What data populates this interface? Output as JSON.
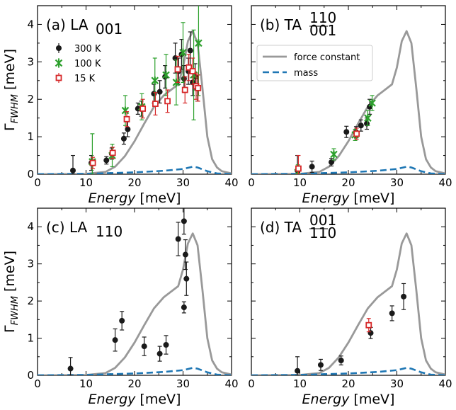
{
  "chart_data": {
    "type": "scatter",
    "x_label_word": "Energy",
    "x_label_unit": "[meV]",
    "y_label_symbol": "Γ",
    "y_label_sub": "FWHM",
    "y_label_unit": "[meV]",
    "xlim": [
      0,
      40
    ],
    "ylim": [
      0,
      4.5
    ],
    "x_ticks": [
      0,
      10,
      20,
      30,
      40
    ],
    "y_ticks": [
      0,
      1,
      2,
      3,
      4
    ],
    "colors": {
      "300K": "#1a1a1a",
      "100K": "#2ca02c",
      "15K": "#d62728",
      "force_constant": "#999999",
      "mass": "#1f77b4"
    },
    "legend_points": [
      {
        "key": "300K",
        "label": "300 K"
      },
      {
        "key": "100K",
        "label": "100 K"
      },
      {
        "key": "15K",
        "label": "15 K"
      }
    ],
    "legend_lines": [
      {
        "key": "force_constant",
        "label": "force constant"
      },
      {
        "key": "mass",
        "label": "mass"
      }
    ],
    "panels": [
      {
        "id": "a",
        "prefix": "(a)",
        "mode": "LA",
        "sub": "001",
        "sup": "",
        "force_constant": [
          [
            0,
            0
          ],
          [
            10,
            0.01
          ],
          [
            14,
            0.06
          ],
          [
            16,
            0.2
          ],
          [
            18,
            0.48
          ],
          [
            20,
            0.88
          ],
          [
            22,
            1.35
          ],
          [
            24,
            1.8
          ],
          [
            26,
            2.1
          ],
          [
            28,
            2.3
          ],
          [
            29,
            2.4
          ],
          [
            30,
            2.85
          ],
          [
            31,
            3.55
          ],
          [
            32,
            3.82
          ],
          [
            33,
            3.5
          ],
          [
            34,
            2.3
          ],
          [
            35,
            1.0
          ],
          [
            36,
            0.4
          ],
          [
            37,
            0.18
          ],
          [
            38,
            0.08
          ],
          [
            40,
            0.02
          ]
        ],
        "mass": [
          [
            0,
            0
          ],
          [
            10,
            0.01
          ],
          [
            20,
            0.05
          ],
          [
            26,
            0.09
          ],
          [
            30,
            0.14
          ],
          [
            32,
            0.2
          ],
          [
            33,
            0.18
          ],
          [
            35,
            0.08
          ],
          [
            37,
            0.02
          ],
          [
            40,
            0
          ]
        ],
        "series": [
          {
            "key": "300K",
            "points": [
              {
                "x": 7.3,
                "y": 0.1,
                "err": 0.4
              },
              {
                "x": 11.1,
                "y": 0.3,
                "err": 0.2
              },
              {
                "x": 14.2,
                "y": 0.37,
                "err": 0.1
              },
              {
                "x": 15.3,
                "y": 0.55,
                "err": 0.15
              },
              {
                "x": 17.8,
                "y": 0.95,
                "err": 0.15
              },
              {
                "x": 18.6,
                "y": 1.2,
                "err": 0.2
              },
              {
                "x": 20.7,
                "y": 1.75,
                "err": 0.15
              },
              {
                "x": 21.4,
                "y": 1.75,
                "err": 0.2
              },
              {
                "x": 24.0,
                "y": 2.15,
                "err": 0.25
              },
              {
                "x": 25.2,
                "y": 2.2,
                "err": 0.3
              },
              {
                "x": 26.3,
                "y": 2.6,
                "err": 0.3
              },
              {
                "x": 28.4,
                "y": 3.1,
                "err": 0.4
              },
              {
                "x": 29.1,
                "y": 2.75,
                "err": 0.35
              },
              {
                "x": 29.7,
                "y": 3.2,
                "err": 0.4
              },
              {
                "x": 30.2,
                "y": 2.55,
                "err": 0.35
              },
              {
                "x": 31.1,
                "y": 2.75,
                "err": 0.35
              },
              {
                "x": 31.5,
                "y": 3.3,
                "err": 0.5
              },
              {
                "x": 32.0,
                "y": 2.45,
                "err": 0.35
              },
              {
                "x": 32.5,
                "y": 2.6,
                "err": 0.35
              },
              {
                "x": 33.0,
                "y": 2.3,
                "err": 0.35
              }
            ]
          },
          {
            "key": "100K",
            "points": [
              {
                "x": 11.3,
                "y": 0.33,
                "err": 0.75
              },
              {
                "x": 15.4,
                "y": 0.5,
                "err": 0.3
              },
              {
                "x": 18.1,
                "y": 1.7,
                "err": 0.4
              },
              {
                "x": 21.5,
                "y": 1.8,
                "err": 0.35
              },
              {
                "x": 24.2,
                "y": 2.5,
                "err": 0.6
              },
              {
                "x": 26.5,
                "y": 2.65,
                "err": 0.55
              },
              {
                "x": 28.6,
                "y": 2.45,
                "err": 0.6
              },
              {
                "x": 30.0,
                "y": 3.25,
                "err": 0.8
              },
              {
                "x": 32.2,
                "y": 2.65,
                "err": 1.2
              },
              {
                "x": 33.2,
                "y": 3.5,
                "err": 1.4
              }
            ]
          },
          {
            "key": "15K",
            "points": [
              {
                "x": 11.4,
                "y": 0.3,
                "err": 0.15
              },
              {
                "x": 15.5,
                "y": 0.57,
                "err": 0.15
              },
              {
                "x": 18.4,
                "y": 1.47,
                "err": 0.2
              },
              {
                "x": 21.7,
                "y": 1.75,
                "err": 0.25
              },
              {
                "x": 24.3,
                "y": 1.88,
                "err": 0.3
              },
              {
                "x": 26.8,
                "y": 1.95,
                "err": 0.3
              },
              {
                "x": 28.9,
                "y": 2.8,
                "err": 0.35
              },
              {
                "x": 30.4,
                "y": 2.25,
                "err": 0.35
              },
              {
                "x": 31.2,
                "y": 2.85,
                "err": 0.35
              },
              {
                "x": 32.0,
                "y": 2.75,
                "err": 0.35
              },
              {
                "x": 32.7,
                "y": 2.35,
                "err": 0.35
              },
              {
                "x": 33.1,
                "y": 2.3,
                "err": 0.35
              }
            ]
          }
        ]
      },
      {
        "id": "b",
        "prefix": "(b)",
        "mode": "TA",
        "sub": "001",
        "sup": "110",
        "force_constant": [
          [
            0,
            0
          ],
          [
            10,
            0.01
          ],
          [
            14,
            0.06
          ],
          [
            16,
            0.2
          ],
          [
            18,
            0.48
          ],
          [
            20,
            0.88
          ],
          [
            22,
            1.35
          ],
          [
            24,
            1.8
          ],
          [
            26,
            2.1
          ],
          [
            28,
            2.3
          ],
          [
            29,
            2.4
          ],
          [
            30,
            2.85
          ],
          [
            31,
            3.55
          ],
          [
            32,
            3.82
          ],
          [
            33,
            3.5
          ],
          [
            34,
            2.3
          ],
          [
            35,
            1.0
          ],
          [
            36,
            0.4
          ],
          [
            37,
            0.18
          ],
          [
            38,
            0.08
          ],
          [
            40,
            0.02
          ]
        ],
        "mass": [
          [
            0,
            0
          ],
          [
            10,
            0.01
          ],
          [
            20,
            0.05
          ],
          [
            26,
            0.09
          ],
          [
            30,
            0.14
          ],
          [
            32,
            0.2
          ],
          [
            33,
            0.18
          ],
          [
            35,
            0.08
          ],
          [
            37,
            0.02
          ],
          [
            40,
            0
          ]
        ],
        "series": [
          {
            "key": "300K",
            "points": [
              {
                "x": 9.5,
                "y": 0.1,
                "err": 0.4
              },
              {
                "x": 12.5,
                "y": 0.2,
                "err": 0.15
              },
              {
                "x": 16.5,
                "y": 0.32,
                "err": 0.1
              },
              {
                "x": 19.6,
                "y": 1.13,
                "err": 0.15
              },
              {
                "x": 21.6,
                "y": 1.12,
                "err": 0.15
              },
              {
                "x": 22.6,
                "y": 1.3,
                "err": 0.15
              },
              {
                "x": 23.8,
                "y": 1.35,
                "err": 0.15
              },
              {
                "x": 24.4,
                "y": 1.8,
                "err": 0.2
              }
            ]
          },
          {
            "key": "100K",
            "points": [
              {
                "x": 9.6,
                "y": 0.05,
                "err": 0.2
              },
              {
                "x": 17.0,
                "y": 0.53,
                "err": 0.15
              },
              {
                "x": 21.4,
                "y": 1.05,
                "err": 0.15
              },
              {
                "x": 24.0,
                "y": 1.5,
                "err": 0.2
              },
              {
                "x": 24.9,
                "y": 1.9,
                "err": 0.2
              }
            ]
          },
          {
            "key": "15K",
            "points": [
              {
                "x": 9.7,
                "y": 0.15,
                "err": 0.35
              },
              {
                "x": 21.7,
                "y": 1.08,
                "err": 0.15
              }
            ]
          }
        ]
      },
      {
        "id": "c",
        "prefix": "(c)",
        "mode": "LA",
        "sub": "110",
        "sup": "",
        "force_constant": [
          [
            0,
            0
          ],
          [
            10,
            0.01
          ],
          [
            14,
            0.06
          ],
          [
            16,
            0.2
          ],
          [
            18,
            0.48
          ],
          [
            20,
            0.88
          ],
          [
            22,
            1.35
          ],
          [
            24,
            1.8
          ],
          [
            26,
            2.1
          ],
          [
            28,
            2.3
          ],
          [
            29,
            2.4
          ],
          [
            30,
            2.85
          ],
          [
            31,
            3.55
          ],
          [
            32,
            3.82
          ],
          [
            33,
            3.5
          ],
          [
            34,
            2.3
          ],
          [
            35,
            1.0
          ],
          [
            36,
            0.4
          ],
          [
            37,
            0.18
          ],
          [
            38,
            0.08
          ],
          [
            40,
            0.02
          ]
        ],
        "mass": [
          [
            0,
            0
          ],
          [
            10,
            0.01
          ],
          [
            20,
            0.05
          ],
          [
            26,
            0.09
          ],
          [
            30,
            0.14
          ],
          [
            32,
            0.2
          ],
          [
            33,
            0.18
          ],
          [
            35,
            0.08
          ],
          [
            37,
            0.02
          ],
          [
            40,
            0
          ]
        ],
        "series": [
          {
            "key": "300K",
            "points": [
              {
                "x": 6.8,
                "y": 0.18,
                "err": 0.3
              },
              {
                "x": 16.0,
                "y": 0.95,
                "err": 0.3
              },
              {
                "x": 17.4,
                "y": 1.47,
                "err": 0.25
              },
              {
                "x": 22.0,
                "y": 0.78,
                "err": 0.25
              },
              {
                "x": 25.2,
                "y": 0.58,
                "err": 0.2
              },
              {
                "x": 26.5,
                "y": 0.82,
                "err": 0.25
              },
              {
                "x": 29.0,
                "y": 3.67,
                "err": 0.45
              },
              {
                "x": 30.2,
                "y": 4.15,
                "err": 0.35
              },
              {
                "x": 30.5,
                "y": 3.25,
                "err": 0.4
              },
              {
                "x": 30.7,
                "y": 2.6,
                "err": 0.45
              },
              {
                "x": 30.2,
                "y": 1.83,
                "err": 0.15
              }
            ]
          }
        ]
      },
      {
        "id": "d",
        "prefix": "(d)",
        "mode": "TA",
        "sub": "110",
        "sup": "001",
        "force_constant": [
          [
            0,
            0
          ],
          [
            10,
            0.01
          ],
          [
            14,
            0.06
          ],
          [
            16,
            0.2
          ],
          [
            18,
            0.48
          ],
          [
            20,
            0.88
          ],
          [
            22,
            1.35
          ],
          [
            24,
            1.8
          ],
          [
            26,
            2.1
          ],
          [
            28,
            2.3
          ],
          [
            29,
            2.4
          ],
          [
            30,
            2.85
          ],
          [
            31,
            3.55
          ],
          [
            32,
            3.82
          ],
          [
            33,
            3.5
          ],
          [
            34,
            2.3
          ],
          [
            35,
            1.0
          ],
          [
            36,
            0.4
          ],
          [
            37,
            0.18
          ],
          [
            38,
            0.08
          ],
          [
            40,
            0.02
          ]
        ],
        "mass": [
          [
            0,
            0
          ],
          [
            10,
            0.01
          ],
          [
            20,
            0.05
          ],
          [
            26,
            0.09
          ],
          [
            30,
            0.14
          ],
          [
            32,
            0.2
          ],
          [
            33,
            0.18
          ],
          [
            35,
            0.08
          ],
          [
            37,
            0.02
          ],
          [
            40,
            0
          ]
        ],
        "series": [
          {
            "key": "300K",
            "points": [
              {
                "x": 9.5,
                "y": 0.12,
                "err": 0.38
              },
              {
                "x": 14.3,
                "y": 0.28,
                "err": 0.15
              },
              {
                "x": 18.5,
                "y": 0.4,
                "err": 0.12
              },
              {
                "x": 24.6,
                "y": 1.14,
                "err": 0.15
              },
              {
                "x": 29.0,
                "y": 1.67,
                "err": 0.2
              },
              {
                "x": 31.4,
                "y": 2.12,
                "err": 0.35
              }
            ]
          },
          {
            "key": "15K",
            "points": [
              {
                "x": 24.2,
                "y": 1.35,
                "err": 0.18
              }
            ]
          }
        ]
      }
    ]
  }
}
